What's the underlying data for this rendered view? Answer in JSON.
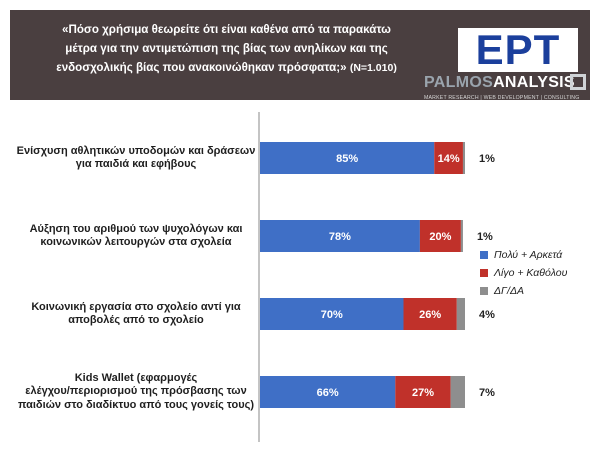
{
  "header": {
    "title_line1": "«Πόσο χρήσιμα θεωρείτε ότι είναι καθένα από τα παρακάτω",
    "title_line2": "μέτρα για την αντιμετώπιση της βίας των ανηλίκων και της",
    "title_line3": "ενδοσχολικής βίας που ανακοινώθηκαν πρόσφατα;»",
    "title_n": "(N=1.010)",
    "logo_ert": "ΕΡΤ",
    "logo_palmos_1": "PALMOS",
    "logo_palmos_2": "ANALYSIS",
    "logo_tagline": "MARKET RESEARCH | WEB DEVELOPMENT | CONSULTING"
  },
  "colors": {
    "header_bg": "#4a3f40",
    "series_1": "#3f6fc6",
    "series_2": "#c0312a",
    "series_3": "#8e8e8e"
  },
  "chart_data": {
    "type": "bar",
    "orientation": "horizontal",
    "stacked": true,
    "categories": [
      "Ενίσχυση αθλητικών υποδομών και δράσεων για παιδιά και εφήβους",
      "Αύξηση του αριθμού των ψυχολόγων και κοινωνικών λειτουργών στα σχολεία",
      "Κοινωνική εργασία στο σχολείο αντί για αποβολές από το σχολείο",
      "Kids Wallet (εφαρμογές ελέγχου/περιορισμού της πρόσβασης των παιδιών στο διαδίκτυο από τους γονείς τους)"
    ],
    "category_lines": [
      [
        "Ενίσχυση αθλητικών υποδομών και δράσεων",
        "για παιδιά και εφήβους"
      ],
      [
        "Αύξηση του αριθμού των ψυχολόγων και",
        "κοινωνικών λειτουργών στα σχολεία"
      ],
      [
        "Κοινωνική εργασία στο σχολείο αντί για",
        "αποβολές από το σχολείο"
      ],
      [
        "Kids Wallet (εφαρμογές",
        "ελέγχου/περιορισμού της πρόσβασης των",
        "παιδιών στο διαδίκτυο από τους γονείς τους)"
      ]
    ],
    "series": [
      {
        "name": "Πολύ + Αρκετά",
        "values": [
          85,
          78,
          70,
          66
        ],
        "color": "#3f6fc6"
      },
      {
        "name": "Λίγο + Καθόλου",
        "values": [
          14,
          20,
          26,
          27
        ],
        "color": "#c0312a"
      },
      {
        "name": "ΔΓ/ΔΑ",
        "values": [
          1,
          1,
          4,
          7
        ],
        "color": "#8e8e8e"
      }
    ],
    "xlim": [
      0,
      100
    ],
    "legend_position": "right",
    "grid": false
  }
}
